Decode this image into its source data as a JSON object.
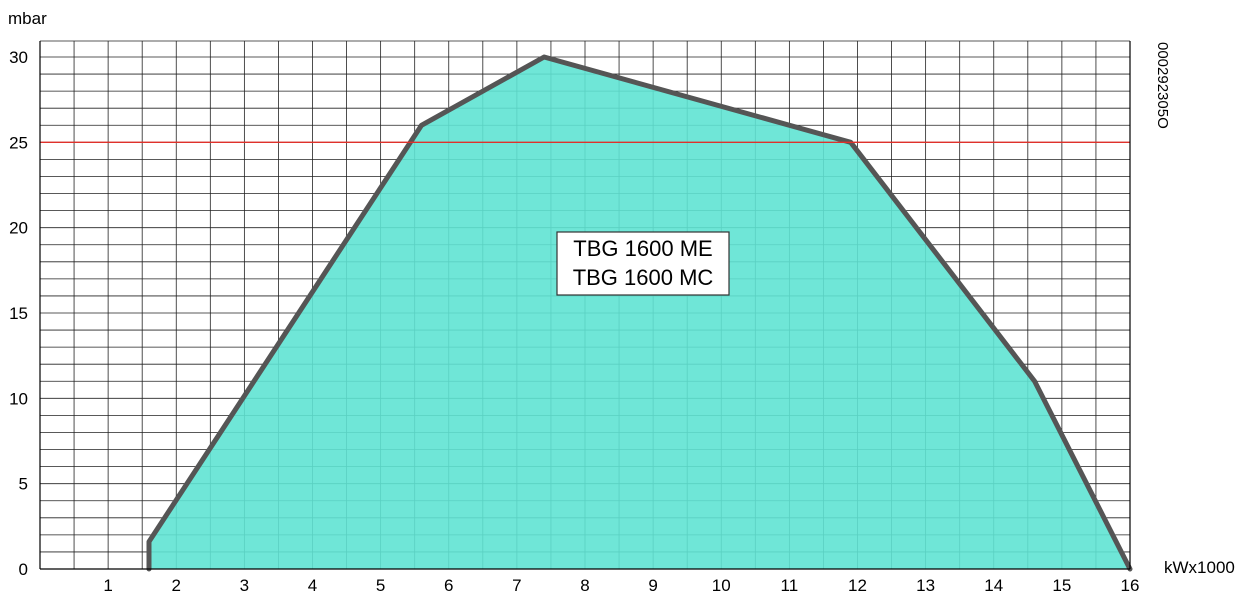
{
  "chart_data": {
    "type": "area",
    "ylabel": "mbar",
    "xlabel": "kWx1000",
    "xlim": [
      0,
      16
    ],
    "ylim": [
      0,
      30
    ],
    "x_ticks": [
      1,
      2,
      3,
      4,
      5,
      6,
      7,
      8,
      9,
      10,
      11,
      12,
      13,
      14,
      15,
      16
    ],
    "y_ticks": [
      0,
      5,
      10,
      15,
      20,
      25,
      30
    ],
    "x_tick_labels": [
      "1",
      "2",
      "3",
      "4",
      "5",
      "6",
      "7",
      "8",
      "9",
      "10",
      "11",
      "12",
      "13",
      "14",
      "15",
      "16"
    ],
    "y_tick_labels": [
      "0",
      "5",
      "10",
      "15",
      "20",
      "25",
      "30"
    ],
    "x_origin_label": "0",
    "grid": true,
    "grid_minor_x": 0.5,
    "grid_minor_y": 1,
    "reference_line": {
      "y": 25,
      "color": "#e0312b"
    },
    "series": [
      {
        "points": [
          {
            "x": 1.6,
            "y": 0
          },
          {
            "x": 1.6,
            "y": 1.6
          },
          {
            "x": 5.6,
            "y": 26
          },
          {
            "x": 7.4,
            "y": 30
          },
          {
            "x": 11.9,
            "y": 25
          },
          {
            "x": 14.6,
            "y": 11
          },
          {
            "x": 16,
            "y": 0
          }
        ],
        "fill_color": "#5fe3d3",
        "stroke_color": "#555555"
      }
    ],
    "annotation_lines": [
      "TBG 1600 ME",
      "TBG 1600 MC"
    ],
    "code_label": "000292305O"
  }
}
